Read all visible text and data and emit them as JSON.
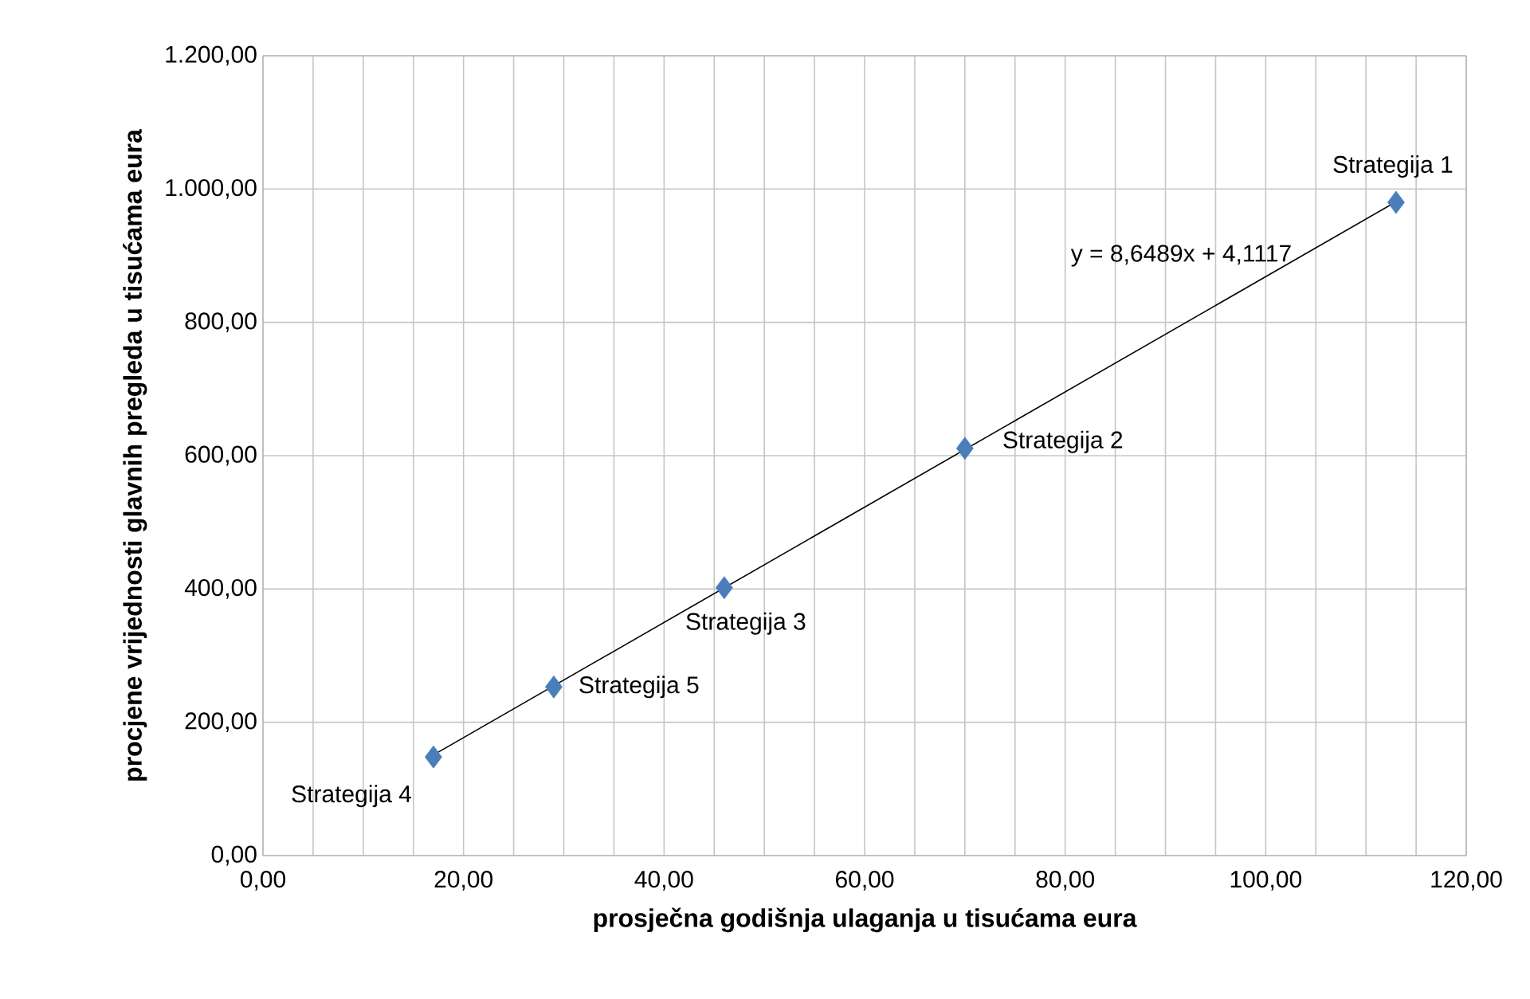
{
  "chart_data": {
    "type": "scatter",
    "xlabel": "prosječna godišnja ulaganja u tisućama eura",
    "ylabel": "procjene vrijednosti glavnih pregleda u tisućama eura",
    "series": [
      {
        "color": "#4a7ebb",
        "marker": "diamond",
        "x": [
          113,
          70,
          46,
          17,
          29
        ],
        "values": [
          980,
          611,
          402,
          148,
          253
        ]
      },
      {
        "type": "line",
        "color": "#000000",
        "x": [
          17,
          113
        ],
        "values": [
          151,
          981
        ]
      }
    ],
    "grid": true,
    "xlim": [
      0,
      120
    ],
    "ylim": [
      0,
      1200
    ],
    "xticks": [
      {
        "value": 0,
        "label": "0,00"
      },
      {
        "value": 5,
        "label": null
      },
      {
        "value": 10,
        "label": null
      },
      {
        "value": 15,
        "label": null
      },
      {
        "value": 20,
        "label": "20,00"
      },
      {
        "value": 25,
        "label": null
      },
      {
        "value": 30,
        "label": null
      },
      {
        "value": 35,
        "label": null
      },
      {
        "value": 40,
        "label": "40,00"
      },
      {
        "value": 45,
        "label": null
      },
      {
        "value": 50,
        "label": null
      },
      {
        "value": 55,
        "label": null
      },
      {
        "value": 60,
        "label": "60,00"
      },
      {
        "value": 65,
        "label": null
      },
      {
        "value": 70,
        "label": null
      },
      {
        "value": 75,
        "label": null
      },
      {
        "value": 80,
        "label": "80,00"
      },
      {
        "value": 85,
        "label": null
      },
      {
        "value": 90,
        "label": null
      },
      {
        "value": 95,
        "label": null
      },
      {
        "value": 100,
        "label": "100,00"
      },
      {
        "value": 105,
        "label": null
      },
      {
        "value": 110,
        "label": null
      },
      {
        "value": 115,
        "label": null
      },
      {
        "value": 120,
        "label": "120,00"
      }
    ],
    "yticks": [
      {
        "value": 0,
        "label": "0,00"
      },
      {
        "value": 200,
        "label": "200,00"
      },
      {
        "value": 400,
        "label": "400,00"
      },
      {
        "value": 600,
        "label": "600,00"
      },
      {
        "value": 800,
        "label": "800,00"
      },
      {
        "value": 1000,
        "label": "1.000,00"
      },
      {
        "value": 1200,
        "label": "1.200,00"
      }
    ],
    "annotations": [
      {
        "text": "Strategija 1",
        "x": 113,
        "y": 980
      },
      {
        "text": "Strategija 2",
        "x": 70,
        "y": 611
      },
      {
        "text": "Strategija 3",
        "x": 46,
        "y": 402
      },
      {
        "text": "Strategija 4",
        "x": 17,
        "y": 148
      },
      {
        "text": "Strategija 5",
        "x": 29,
        "y": 253
      },
      "y = 8,6489x + 4,1117"
    ]
  }
}
